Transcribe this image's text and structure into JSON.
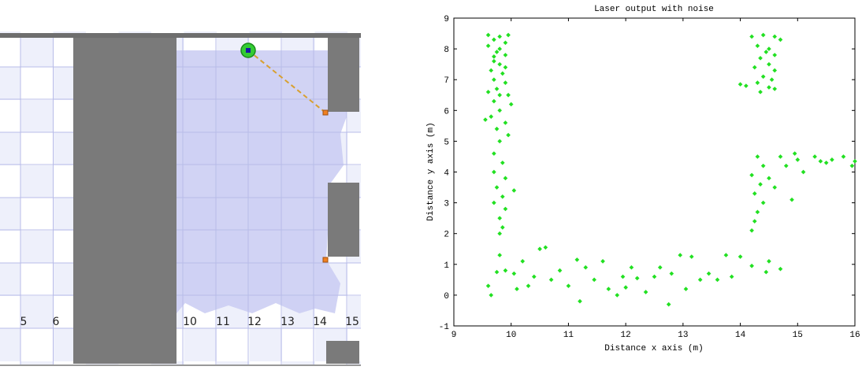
{
  "simulator": {
    "grid_labels": [
      "5",
      "6",
      "10",
      "11",
      "12",
      "13",
      "14",
      "15"
    ]
  },
  "chart_data": {
    "type": "scatter",
    "title": "Laser output with noise",
    "x_label": "Distance x axis (m)",
    "y_label": "Distance y axis (m)",
    "color": "#22e022",
    "xlim": [
      9,
      16
    ],
    "ylim": [
      -1,
      9
    ],
    "xticks": [
      9,
      10,
      11,
      12,
      13,
      14,
      15,
      16
    ],
    "yticks": [
      -1,
      0,
      1,
      2,
      3,
      4,
      5,
      6,
      7,
      8,
      9
    ],
    "x": [
      9.8,
      9.7,
      9.9,
      9.6,
      9.8,
      9.75,
      9.9,
      9.7,
      9.8,
      9.65,
      9.85,
      9.7,
      9.9,
      9.75,
      9.8,
      9.7,
      10.0,
      9.8,
      9.65,
      9.9,
      9.55,
      9.75,
      9.95,
      9.8,
      9.7,
      9.85,
      9.7,
      9.9,
      9.75,
      10.05,
      9.85,
      9.7,
      9.9,
      9.8,
      9.85,
      9.8,
      9.6,
      9.95,
      9.7,
      9.9,
      9.6,
      9.95,
      14.2,
      14.4,
      14.6,
      14.7,
      14.3,
      14.5,
      14.6,
      14.35,
      14.5,
      14.25,
      14.6,
      14.4,
      14.55,
      14.3,
      14.0,
      14.1,
      14.5,
      14.35,
      14.6,
      14.45,
      14.3,
      14.4,
      14.2,
      14.35,
      14.25,
      14.4,
      14.3,
      14.25,
      14.2,
      14.5,
      14.6,
      14.9,
      14.7,
      14.8,
      15.0,
      15.1,
      15.3,
      15.5,
      15.6,
      15.8,
      15.95,
      16.0,
      15.4,
      14.95,
      9.6,
      9.65,
      9.8,
      9.9,
      10.05,
      10.1,
      10.2,
      10.3,
      10.4,
      10.5,
      10.6,
      10.7,
      10.85,
      11.0,
      11.15,
      11.2,
      11.3,
      11.45,
      11.6,
      11.7,
      11.85,
      11.95,
      12.1,
      12.2,
      12.35,
      12.5,
      12.6,
      12.75,
      12.8,
      12.95,
      13.05,
      13.15,
      13.3,
      13.45,
      13.6,
      13.75,
      13.85,
      14.0,
      14.2,
      14.45,
      14.5,
      14.7,
      9.75,
      12.0
    ],
    "y": [
      8.4,
      8.3,
      8.2,
      8.1,
      8.0,
      7.9,
      7.8,
      7.6,
      7.5,
      7.3,
      7.2,
      7.0,
      6.9,
      6.7,
      6.5,
      6.3,
      6.2,
      6.0,
      5.8,
      5.6,
      5.7,
      5.4,
      5.2,
      5.0,
      4.6,
      4.3,
      4.0,
      3.8,
      3.5,
      3.4,
      3.2,
      3.0,
      2.8,
      2.5,
      2.2,
      2.0,
      8.45,
      8.45,
      7.75,
      7.4,
      6.6,
      6.5,
      8.4,
      8.45,
      8.4,
      8.3,
      8.1,
      8.0,
      7.8,
      7.7,
      7.5,
      7.4,
      7.3,
      7.1,
      7.0,
      6.9,
      6.85,
      6.8,
      6.75,
      6.6,
      6.7,
      7.9,
      4.5,
      4.2,
      3.9,
      3.6,
      3.3,
      3.0,
      2.7,
      2.4,
      2.1,
      3.8,
      3.5,
      3.1,
      4.5,
      4.2,
      4.4,
      4.0,
      4.5,
      4.3,
      4.4,
      4.5,
      4.2,
      4.35,
      4.35,
      4.6,
      0.3,
      0.0,
      1.3,
      0.8,
      0.7,
      0.2,
      1.1,
      0.3,
      0.6,
      1.5,
      1.55,
      0.5,
      0.8,
      0.3,
      1.15,
      -0.2,
      0.9,
      0.5,
      1.1,
      0.2,
      0.0,
      0.6,
      0.9,
      0.55,
      0.1,
      0.6,
      0.9,
      -0.3,
      0.7,
      1.3,
      0.2,
      1.25,
      0.5,
      0.7,
      0.5,
      1.3,
      0.6,
      1.25,
      0.95,
      0.75,
      1.1,
      0.85,
      0.75,
      0.25
    ]
  }
}
